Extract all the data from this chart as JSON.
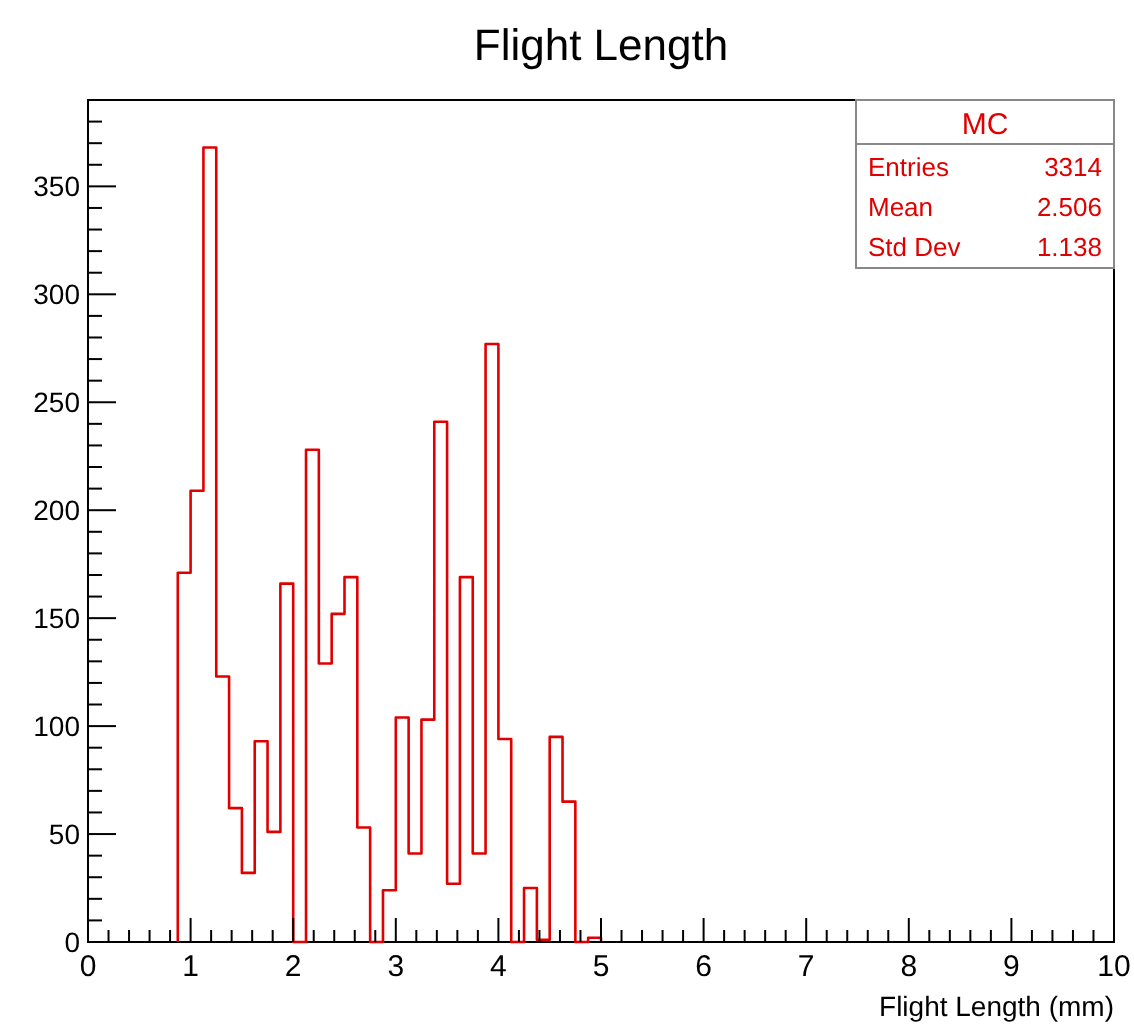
{
  "chart_data": {
    "type": "histogram",
    "title": "Flight Length",
    "xlabel": "Flight Length (mm)",
    "color": "#e00000",
    "bins": [
      0.875,
      1.0,
      1.125,
      1.25,
      1.375,
      1.5,
      1.625,
      1.75,
      1.875,
      2.0,
      2.125,
      2.25,
      2.375,
      2.5,
      2.625,
      2.75,
      2.875,
      3.0,
      3.125,
      3.25,
      3.375,
      3.5,
      3.625,
      3.75,
      3.875,
      4.0,
      4.125,
      4.25,
      4.375,
      4.5,
      4.625,
      4.75,
      4.875,
      5.0
    ],
    "values": [
      171,
      209,
      368,
      123,
      62,
      32,
      93,
      51,
      166,
      0,
      228,
      129,
      152,
      169,
      53,
      0,
      24,
      104,
      41,
      103,
      241,
      27,
      169,
      41,
      277,
      94,
      0,
      25,
      1,
      95,
      65,
      0,
      2
    ],
    "xlim": [
      0,
      10
    ],
    "ylim": [
      0,
      390
    ],
    "xticks": [
      0,
      {
        "value": 0.2,
        "label": null
      },
      {
        "value": 0.4,
        "label": null
      },
      {
        "value": 0.6,
        "label": null
      },
      {
        "value": 0.8,
        "label": null
      },
      1,
      {
        "value": 1.2,
        "label": null
      },
      {
        "value": 1.4,
        "label": null
      },
      {
        "value": 1.6,
        "label": null
      },
      {
        "value": 1.8,
        "label": null
      },
      2,
      {
        "value": 2.2,
        "label": null
      },
      {
        "value": 2.4,
        "label": null
      },
      {
        "value": 2.6,
        "label": null
      },
      {
        "value": 2.8,
        "label": null
      },
      3,
      {
        "value": 3.2,
        "label": null
      },
      {
        "value": 3.4,
        "label": null
      },
      {
        "value": 3.6,
        "label": null
      },
      {
        "value": 3.8,
        "label": null
      },
      4,
      {
        "value": 4.2,
        "label": null
      },
      {
        "value": 4.4,
        "label": null
      },
      {
        "value": 4.6,
        "label": null
      },
      {
        "value": 4.8,
        "label": null
      },
      5,
      {
        "value": 5.2,
        "label": null
      },
      {
        "value": 5.4,
        "label": null
      },
      {
        "value": 5.6,
        "label": null
      },
      {
        "value": 5.8,
        "label": null
      },
      6,
      {
        "value": 6.2,
        "label": null
      },
      {
        "value": 6.4,
        "label": null
      },
      {
        "value": 6.6,
        "label": null
      },
      {
        "value": 6.8,
        "label": null
      },
      7,
      {
        "value": 7.2,
        "label": null
      },
      {
        "value": 7.4,
        "label": null
      },
      {
        "value": 7.6,
        "label": null
      },
      {
        "value": 7.8,
        "label": null
      },
      8,
      {
        "value": 8.2,
        "label": null
      },
      {
        "value": 8.4,
        "label": null
      },
      {
        "value": 8.6,
        "label": null
      },
      {
        "value": 8.8,
        "label": null
      },
      9,
      {
        "value": 9.2,
        "label": null
      },
      {
        "value": 9.4,
        "label": null
      },
      {
        "value": 9.6,
        "label": null
      },
      {
        "value": 9.8,
        "label": null
      },
      10
    ],
    "yticks": [
      0,
      {
        "value": 10,
        "label": null
      },
      {
        "value": 20,
        "label": null
      },
      {
        "value": 30,
        "label": null
      },
      {
        "value": 40,
        "label": null
      },
      50,
      {
        "value": 60,
        "label": null
      },
      {
        "value": 70,
        "label": null
      },
      {
        "value": 80,
        "label": null
      },
      {
        "value": 90,
        "label": null
      },
      100,
      {
        "value": 110,
        "label": null
      },
      {
        "value": 120,
        "label": null
      },
      {
        "value": 130,
        "label": null
      },
      {
        "value": 140,
        "label": null
      },
      150,
      {
        "value": 160,
        "label": null
      },
      {
        "value": 170,
        "label": null
      },
      {
        "value": 180,
        "label": null
      },
      {
        "value": 190,
        "label": null
      },
      200,
      {
        "value": 210,
        "label": null
      },
      {
        "value": 220,
        "label": null
      },
      {
        "value": 230,
        "label": null
      },
      {
        "value": 240,
        "label": null
      },
      250,
      {
        "value": 260,
        "label": null
      },
      {
        "value": 270,
        "label": null
      },
      {
        "value": 280,
        "label": null
      },
      {
        "value": 290,
        "label": null
      },
      300,
      {
        "value": 310,
        "label": null
      },
      {
        "value": 320,
        "label": null
      },
      {
        "value": 330,
        "label": null
      },
      {
        "value": 340,
        "label": null
      },
      350,
      {
        "value": 360,
        "label": null
      },
      {
        "value": 370,
        "label": null
      },
      {
        "value": 380,
        "label": null
      }
    ],
    "annotations": [
      "MC",
      "Entries",
      "3314",
      "Mean",
      "2.506",
      "Std Dev",
      "1.138"
    ]
  }
}
